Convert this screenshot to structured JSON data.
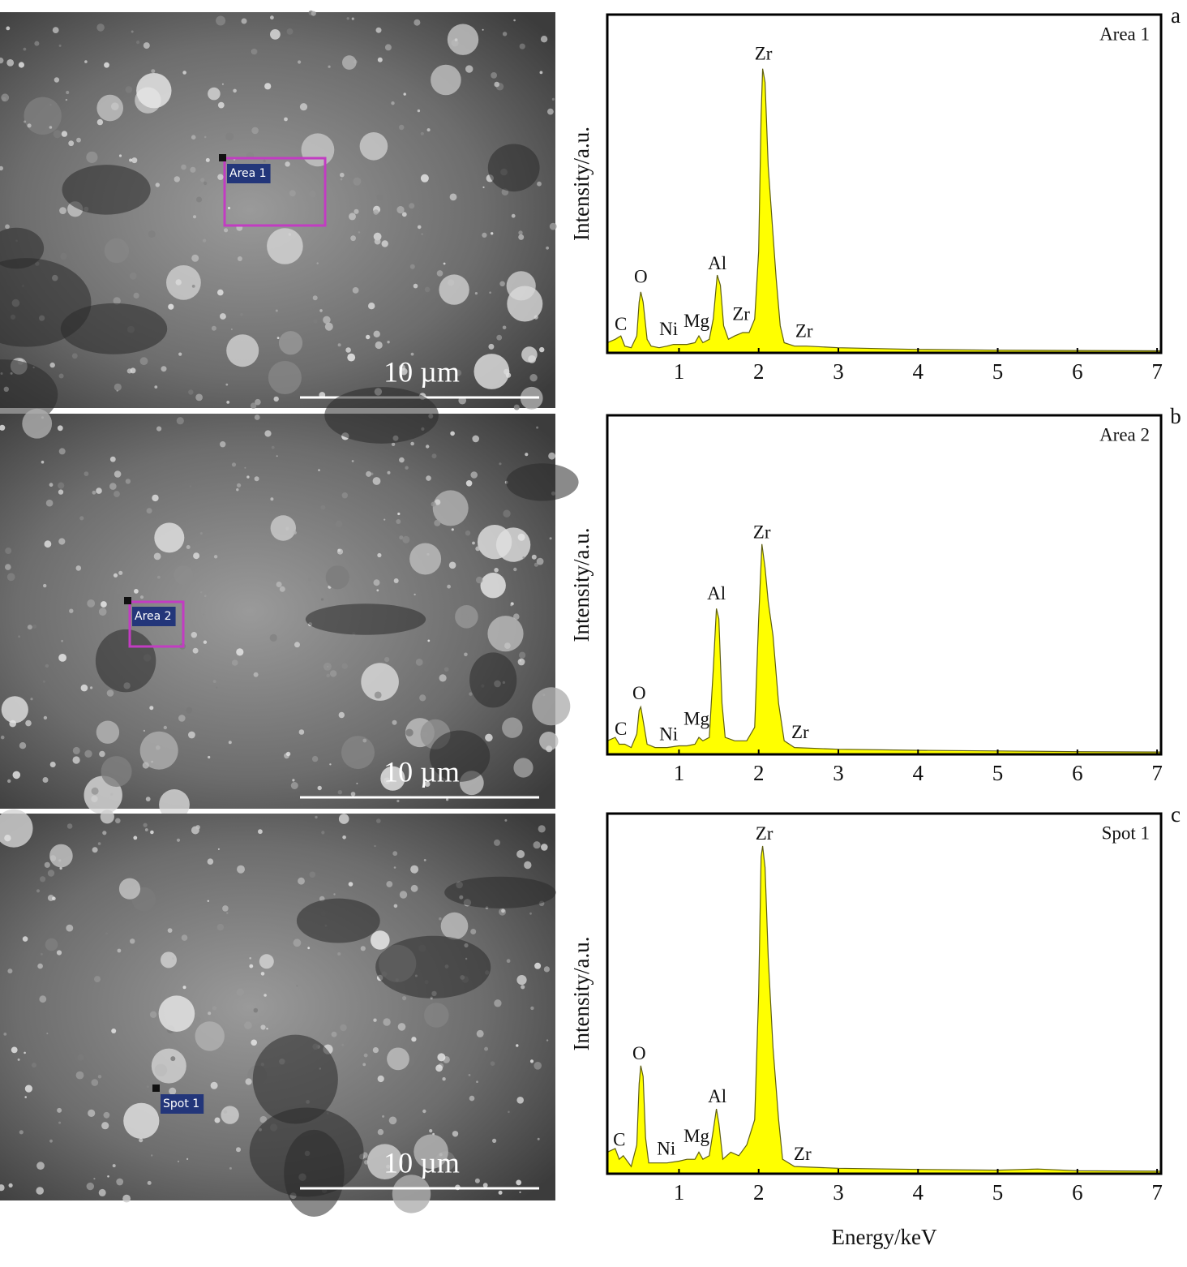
{
  "chart_data": [
    {
      "type": "area",
      "panel_label": "a",
      "legend_label": "Area 1",
      "image_label": "Area 1",
      "scale_bar_label": "10 µm",
      "y_label": "Intensity/a.u.",
      "color": "#ffff00",
      "xlim": [
        0.1,
        7.05
      ],
      "ylim": [
        0,
        100
      ],
      "xticks": [
        1,
        2,
        3,
        4,
        5,
        6,
        7
      ],
      "x": [
        0.1,
        0.2,
        0.27,
        0.32,
        0.4,
        0.47,
        0.5,
        0.52,
        0.55,
        0.6,
        0.65,
        0.75,
        0.85,
        0.93,
        1.0,
        1.1,
        1.2,
        1.25,
        1.3,
        1.38,
        1.43,
        1.48,
        1.52,
        1.56,
        1.62,
        1.7,
        1.8,
        1.88,
        1.95,
        2.0,
        2.03,
        2.05,
        2.08,
        2.12,
        2.18,
        2.22,
        2.27,
        2.32,
        2.45,
        2.6,
        3.0,
        4.0,
        5.0,
        6.0,
        7.05
      ],
      "values": [
        3,
        4,
        5,
        2,
        1.5,
        5,
        15,
        18,
        15,
        4,
        2,
        1.5,
        2,
        2.5,
        2.5,
        2.5,
        3,
        5,
        3,
        4,
        10,
        23,
        20,
        8,
        4,
        5,
        6,
        6,
        10,
        30,
        70,
        84,
        80,
        55,
        35,
        22,
        8,
        3,
        2,
        2,
        1.5,
        1,
        0.8,
        0.7,
        0.6
      ],
      "annotations": [
        {
          "text": "C",
          "x": 0.27,
          "y": 8
        },
        {
          "text": "O",
          "x": 0.52,
          "y": 22
        },
        {
          "text": "Ni",
          "x": 0.87,
          "y": 6.5
        },
        {
          "text": "Mg",
          "x": 1.22,
          "y": 9
        },
        {
          "text": "Al",
          "x": 1.48,
          "y": 26
        },
        {
          "text": "Zr",
          "x": 1.78,
          "y": 11
        },
        {
          "text": "Zr",
          "x": 2.06,
          "y": 88
        },
        {
          "text": "Zr",
          "x": 2.57,
          "y": 6
        }
      ]
    },
    {
      "type": "area",
      "panel_label": "b",
      "legend_label": "Area 2",
      "image_label": "Area 2",
      "scale_bar_label": "10 µm",
      "y_label": "Intensity/a.u.",
      "color": "#ffff00",
      "xlim": [
        0.1,
        7.05
      ],
      "ylim": [
        0,
        100
      ],
      "xticks": [
        1,
        2,
        3,
        4,
        5,
        6,
        7
      ],
      "x": [
        0.1,
        0.2,
        0.25,
        0.32,
        0.4,
        0.47,
        0.5,
        0.52,
        0.55,
        0.6,
        0.7,
        0.85,
        1.0,
        1.1,
        1.2,
        1.25,
        1.3,
        1.38,
        1.43,
        1.47,
        1.5,
        1.54,
        1.58,
        1.7,
        1.85,
        1.95,
        2.0,
        2.04,
        2.08,
        2.12,
        2.18,
        2.25,
        2.32,
        2.45,
        3.0,
        4.0,
        5.0,
        6.0,
        7.05
      ],
      "values": [
        4,
        5,
        3,
        3,
        2,
        6,
        13,
        14,
        10,
        3,
        2,
        2,
        2.5,
        2.5,
        3,
        5,
        4,
        5,
        25,
        43,
        40,
        15,
        5,
        4,
        4,
        8,
        40,
        62,
        55,
        45,
        35,
        15,
        4,
        2,
        1.5,
        1.2,
        1,
        0.8,
        0.7
      ],
      "annotations": [
        {
          "text": "C",
          "x": 0.27,
          "y": 7
        },
        {
          "text": "O",
          "x": 0.5,
          "y": 17.5
        },
        {
          "text": "Ni",
          "x": 0.87,
          "y": 5.5
        },
        {
          "text": "Mg",
          "x": 1.22,
          "y": 10
        },
        {
          "text": "Al",
          "x": 1.47,
          "y": 47
        },
        {
          "text": "Zr",
          "x": 2.04,
          "y": 65
        },
        {
          "text": "Zr",
          "x": 2.52,
          "y": 6
        }
      ]
    },
    {
      "type": "area",
      "panel_label": "c",
      "legend_label": "Spot 1",
      "image_label": "Spot 1",
      "scale_bar_label": "10 µm",
      "y_label": "Intensity/a.u.",
      "x_label": "Energy/keV",
      "color": "#ffff00",
      "xlim": [
        0.1,
        7.05
      ],
      "ylim": [
        0,
        100
      ],
      "xticks": [
        1,
        2,
        3,
        4,
        5,
        6,
        7
      ],
      "x": [
        0.1,
        0.2,
        0.25,
        0.3,
        0.4,
        0.47,
        0.5,
        0.52,
        0.55,
        0.58,
        0.62,
        0.7,
        0.85,
        1.0,
        1.1,
        1.2,
        1.25,
        1.3,
        1.38,
        1.43,
        1.47,
        1.5,
        1.55,
        1.65,
        1.75,
        1.85,
        1.95,
        2.0,
        2.03,
        2.05,
        2.08,
        2.12,
        2.18,
        2.25,
        2.3,
        2.45,
        3.0,
        4.0,
        5.0,
        5.5,
        6.0,
        7.05
      ],
      "values": [
        6,
        7,
        4,
        5,
        2,
        8,
        25,
        30,
        27,
        10,
        3,
        3,
        3,
        3.5,
        4,
        4,
        6,
        4,
        5,
        12,
        18,
        14,
        4,
        6,
        5,
        8,
        15,
        50,
        88,
        91,
        85,
        60,
        35,
        15,
        4,
        2,
        1.5,
        1.2,
        1,
        1.3,
        0.8,
        0.7
      ],
      "annotations": [
        {
          "text": "C",
          "x": 0.25,
          "y": 9
        },
        {
          "text": "O",
          "x": 0.5,
          "y": 33
        },
        {
          "text": "Ni",
          "x": 0.84,
          "y": 6.5
        },
        {
          "text": "Mg",
          "x": 1.22,
          "y": 10
        },
        {
          "text": "Al",
          "x": 1.48,
          "y": 21
        },
        {
          "text": "Zr",
          "x": 2.07,
          "y": 94
        },
        {
          "text": "Zr",
          "x": 2.55,
          "y": 5
        }
      ]
    }
  ]
}
